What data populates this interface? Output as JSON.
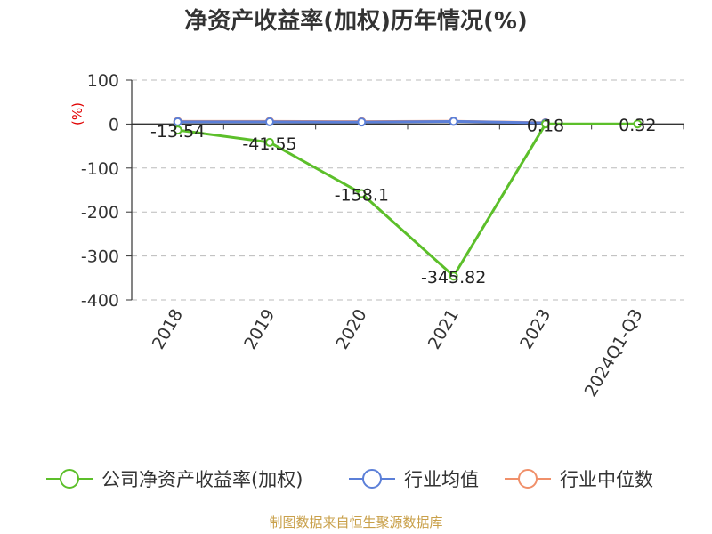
{
  "chart_data": {
    "type": "line",
    "title": "净资产收益率(加权)历年情况(%)",
    "unit_label": "(%)",
    "categories": [
      "2018",
      "2019",
      "2020",
      "2021",
      "2023",
      "2024Q1-Q3"
    ],
    "yticks": [
      100,
      0,
      -100,
      -200,
      -300,
      -400
    ],
    "ylim": [
      -400,
      100
    ],
    "grid": true,
    "legend_position": "bottom",
    "series": [
      {
        "name": "公司净资产收益率(加权)",
        "color": "#5cbf2a",
        "values": [
          -13.54,
          -41.55,
          -158.1,
          -345.82,
          0.18,
          0.32
        ],
        "labels": [
          "-13.54",
          "-41.55",
          "-158.1",
          "-345.82",
          "0.18",
          "0.32"
        ]
      },
      {
        "name": "行业均值",
        "color": "#5b7fd8",
        "values": [
          5.0,
          5.0,
          4.5,
          6.0,
          2.5,
          null
        ]
      },
      {
        "name": "行业中位数",
        "color": "#f0906a",
        "values": [
          6.0,
          6.0,
          5.5,
          6.5,
          3.0,
          null
        ]
      }
    ],
    "source": "制图数据来自恒生聚源数据库"
  }
}
